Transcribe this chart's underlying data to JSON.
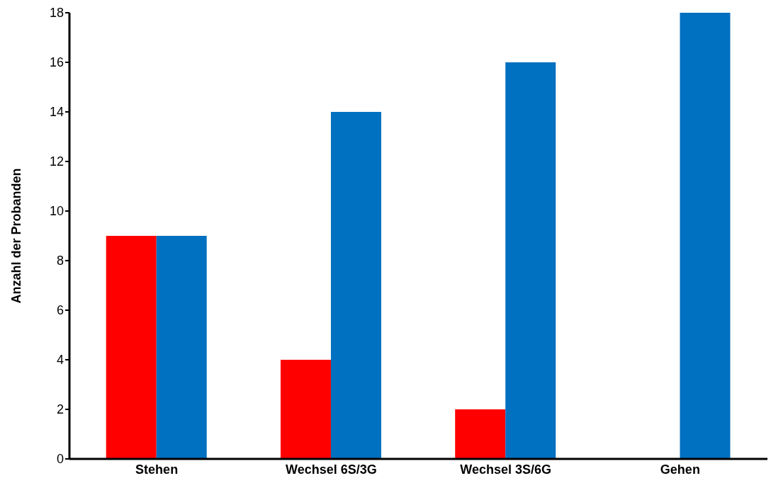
{
  "chart_data": {
    "type": "bar",
    "ylabel": "Anzahl der Probanden",
    "categories": [
      "Stehen",
      "Wechsel 6S/3G",
      "Wechsel 3S/6G",
      "Gehen"
    ],
    "series": [
      {
        "color": "#ff0000",
        "values": [
          9,
          4,
          2,
          0
        ]
      },
      {
        "color": "#0070c0",
        "values": [
          9,
          14,
          16,
          18
        ]
      }
    ],
    "ylim": [
      0,
      18
    ],
    "yticks": [
      0,
      2,
      4,
      6,
      8,
      10,
      12,
      14,
      16,
      18
    ],
    "grid": false,
    "legend": false
  }
}
